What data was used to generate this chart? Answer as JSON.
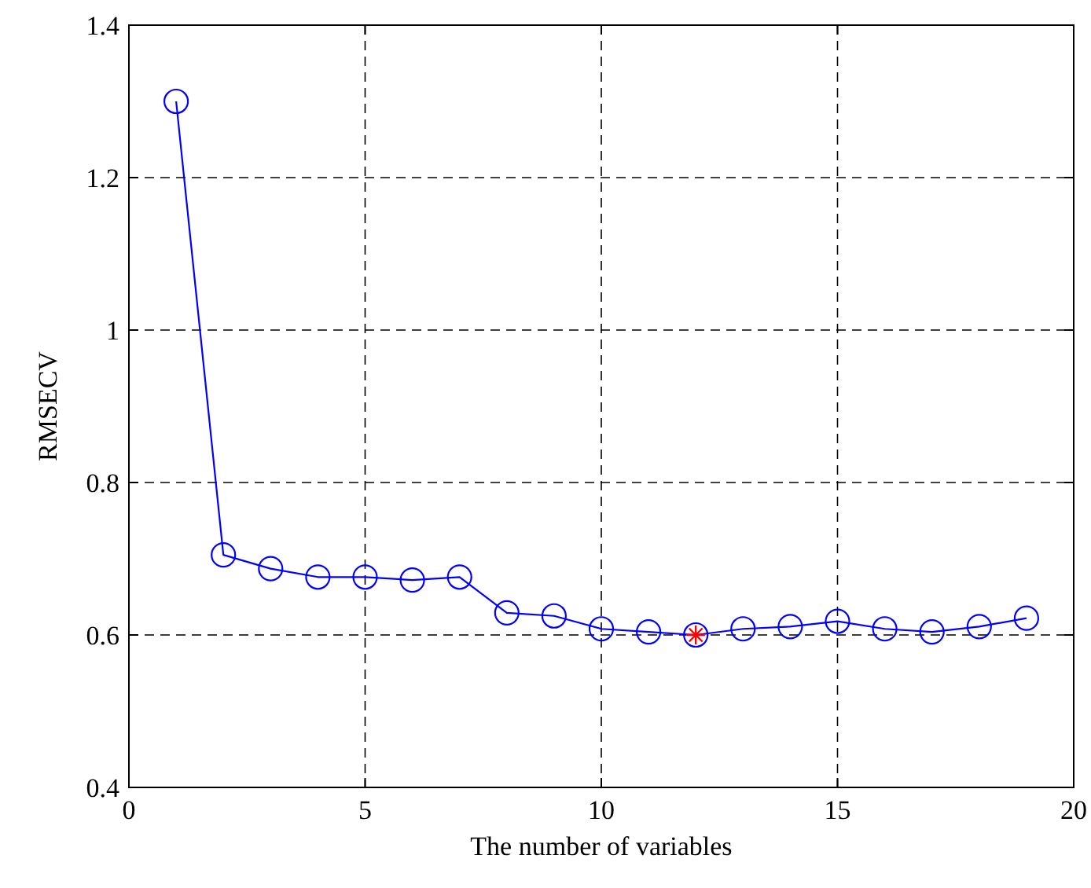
{
  "chart_data": {
    "type": "line",
    "xlabel": "The number of variables",
    "ylabel": "RMSECV",
    "xlim": [
      0,
      20
    ],
    "xticks": [
      0,
      5,
      10,
      15,
      20
    ],
    "ylim": [
      0.4,
      1.4
    ],
    "yticks": [
      0.4,
      0.6,
      0.8,
      1,
      1.2,
      1.4
    ],
    "grid": true,
    "series": [
      {
        "type": "line",
        "color": "#0000ff",
        "marker": "circle",
        "line_style": "solid",
        "x": [
          1,
          2,
          3,
          4,
          5,
          6,
          7,
          8,
          9,
          10,
          11,
          12,
          13,
          14,
          15,
          16,
          17,
          18,
          19
        ],
        "values": [
          1.3,
          0.705,
          0.687,
          0.676,
          0.676,
          0.672,
          0.676,
          0.629,
          0.625,
          0.608,
          0.604,
          0.6,
          0.608,
          0.611,
          0.618,
          0.608,
          0.604,
          0.611,
          0.622
        ]
      },
      {
        "type": "scatter",
        "color": "#ff0000",
        "marker": "cross",
        "x": [
          12
        ],
        "values": [
          0.6
        ]
      }
    ]
  }
}
